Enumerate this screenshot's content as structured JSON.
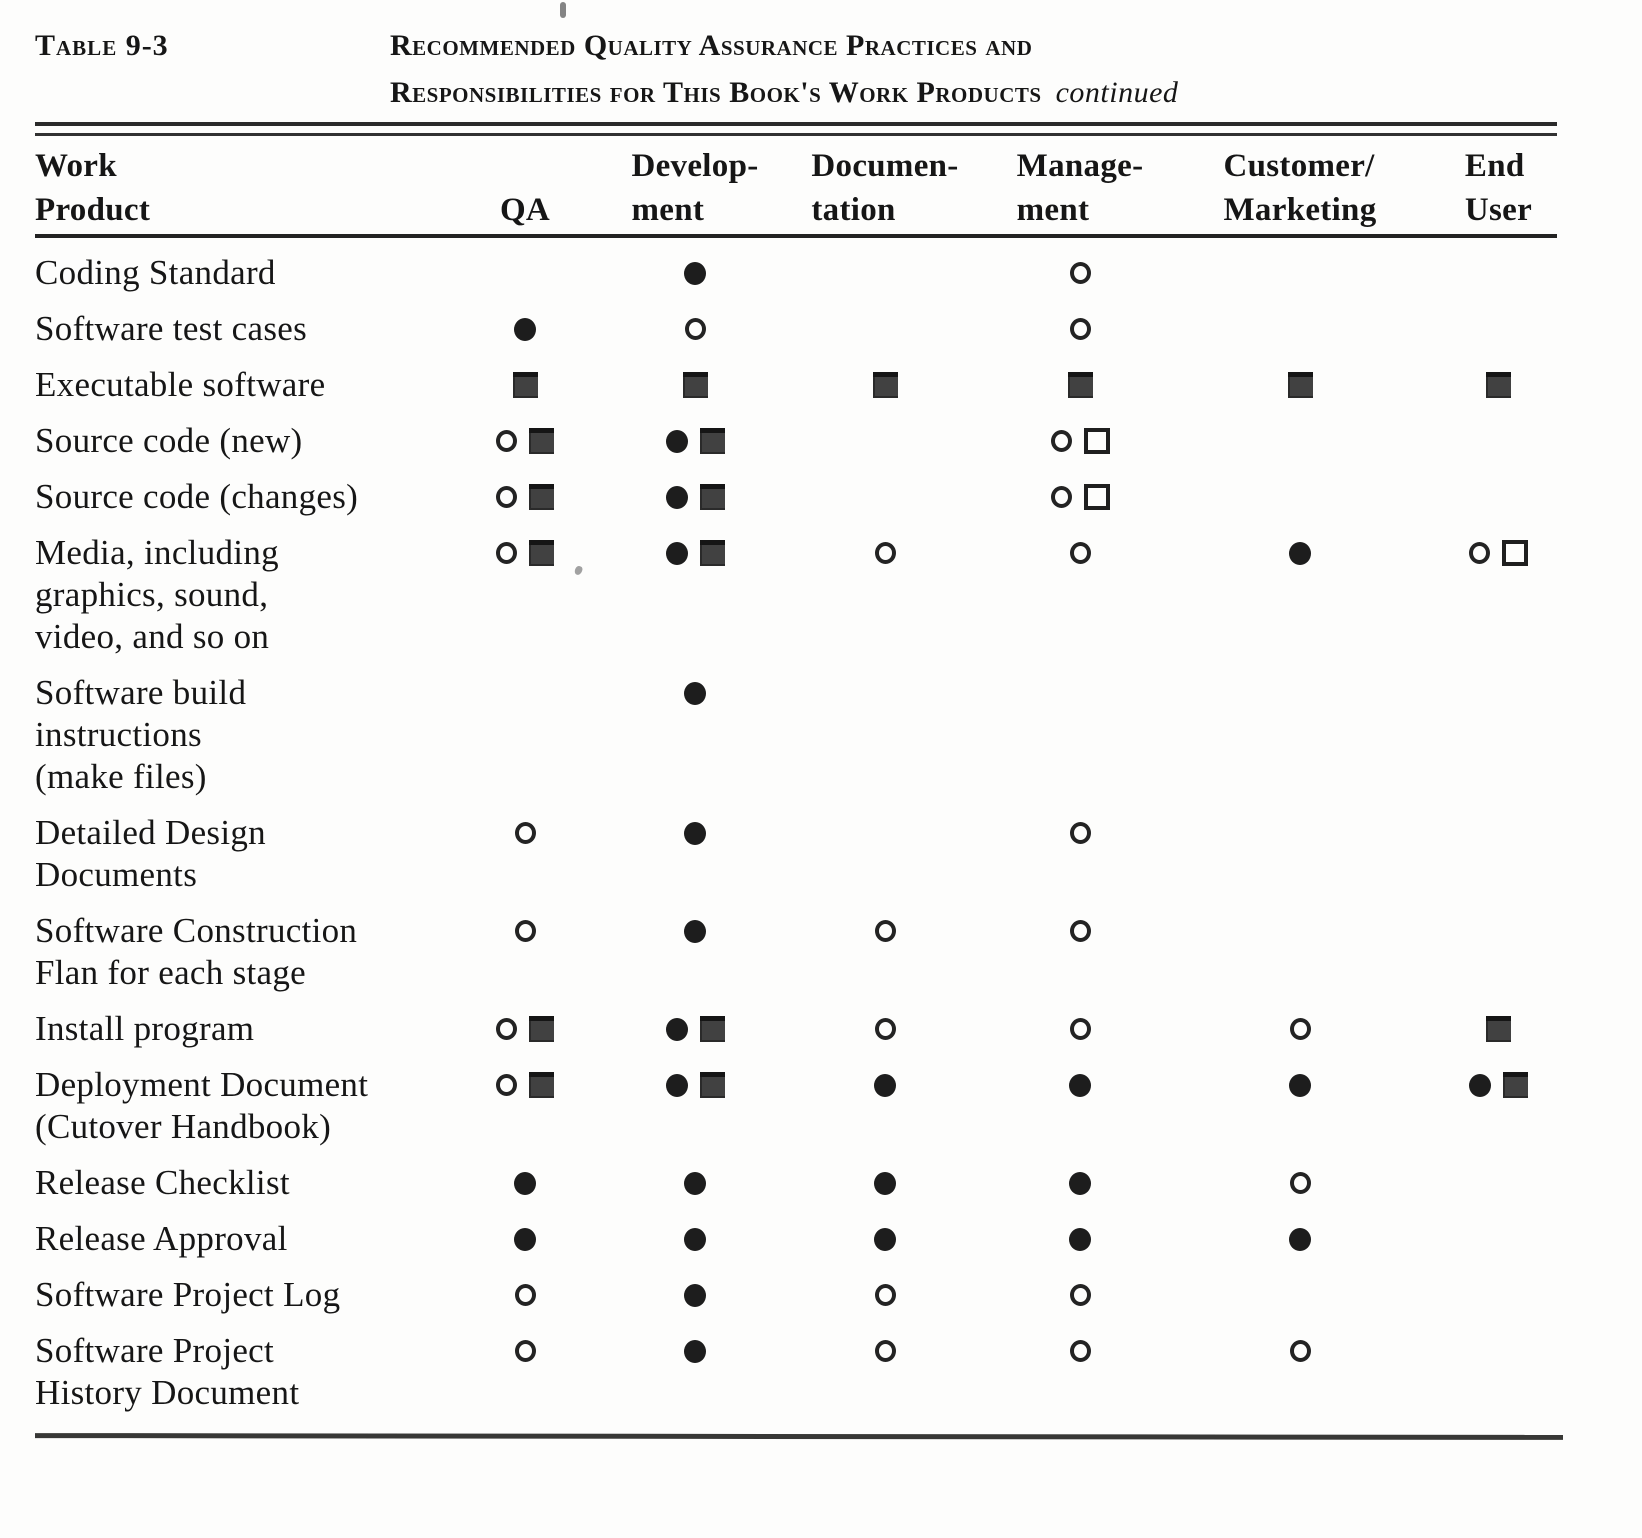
{
  "page": {
    "table_label": "Table 9-3",
    "title_line1": "Recommended Quality Assurance Practices and",
    "title_line2": "Responsibilities for This Book's Work Products",
    "title_continued": "continued"
  },
  "symbol_glyphs": {
    "filled-circle": "●",
    "open-circle": "○",
    "filled-square": "■",
    "open-square": "□"
  },
  "table": {
    "columns": [
      {
        "line1": "Work",
        "line2": "Product"
      },
      {
        "line1": "",
        "line2": "QA"
      },
      {
        "line1": "Develop-",
        "line2": "ment"
      },
      {
        "line1": "Documen-",
        "line2": "tation"
      },
      {
        "line1": "Manage-",
        "line2": "ment"
      },
      {
        "line1": "Customer/",
        "line2": "Marketing"
      },
      {
        "line1": "End",
        "line2": "User"
      }
    ],
    "rows": [
      {
        "label_lines": [
          "Coding Standard"
        ],
        "cells": [
          [],
          [
            "filled-circle"
          ],
          [],
          [
            "open-circle"
          ],
          [],
          []
        ]
      },
      {
        "label_lines": [
          "Software test cases"
        ],
        "cells": [
          [
            "filled-circle"
          ],
          [
            "open-circle"
          ],
          [],
          [
            "open-circle"
          ],
          [],
          []
        ]
      },
      {
        "label_lines": [
          "Executable software"
        ],
        "cells": [
          [
            "filled-square"
          ],
          [
            "filled-square"
          ],
          [
            "filled-square"
          ],
          [
            "filled-square"
          ],
          [
            "filled-square"
          ],
          [
            "filled-square"
          ]
        ]
      },
      {
        "label_lines": [
          "Source code (new)"
        ],
        "cells": [
          [
            "open-circle",
            "filled-square"
          ],
          [
            "filled-circle",
            "filled-square"
          ],
          [],
          [
            "open-circle",
            "open-square"
          ],
          [],
          []
        ]
      },
      {
        "label_lines": [
          "Source code (changes)"
        ],
        "cells": [
          [
            "open-circle",
            "filled-square"
          ],
          [
            "filled-circle",
            "filled-square"
          ],
          [],
          [
            "open-circle",
            "open-square"
          ],
          [],
          []
        ]
      },
      {
        "label_lines": [
          "Media, including",
          "graphics, sound,",
          "video, and so on"
        ],
        "cells": [
          [
            "open-circle",
            "filled-square"
          ],
          [
            "filled-circle",
            "filled-square"
          ],
          [
            "open-circle"
          ],
          [
            "open-circle"
          ],
          [
            "filled-circle"
          ],
          [
            "open-circle",
            "open-square"
          ]
        ]
      },
      {
        "label_lines": [
          "Software  build",
          "instructions",
          "(make files)"
        ],
        "cells": [
          [],
          [
            "filled-circle"
          ],
          [],
          [],
          [],
          []
        ]
      },
      {
        "label_lines": [
          "Detailed Design",
          "Documents"
        ],
        "cells": [
          [
            "open-circle"
          ],
          [
            "filled-circle"
          ],
          [],
          [
            "open-circle"
          ],
          [],
          []
        ]
      },
      {
        "label_lines": [
          "Software  Construction",
          "Flan for each stage"
        ],
        "cells": [
          [
            "open-circle"
          ],
          [
            "filled-circle"
          ],
          [
            "open-circle"
          ],
          [
            "open-circle"
          ],
          [],
          []
        ]
      },
      {
        "label_lines": [
          "Install program"
        ],
        "cells": [
          [
            "open-circle",
            "filled-square"
          ],
          [
            "filled-circle",
            "filled-square"
          ],
          [
            "open-circle"
          ],
          [
            "open-circle"
          ],
          [
            "open-circle"
          ],
          [
            "filled-square"
          ]
        ]
      },
      {
        "label_lines": [
          "Deployment Document",
          "(Cutover  Handbook)"
        ],
        "cells": [
          [
            "open-circle",
            "filled-square"
          ],
          [
            "filled-circle",
            "filled-square"
          ],
          [
            "filled-circle"
          ],
          [
            "filled-circle"
          ],
          [
            "filled-circle"
          ],
          [
            "filled-circle",
            "filled-square"
          ]
        ]
      },
      {
        "label_lines": [
          "Release  Checklist"
        ],
        "cells": [
          [
            "filled-circle"
          ],
          [
            "filled-circle"
          ],
          [
            "filled-circle"
          ],
          [
            "filled-circle"
          ],
          [
            "open-circle"
          ],
          []
        ]
      },
      {
        "label_lines": [
          "Release  Approval"
        ],
        "cells": [
          [
            "filled-circle"
          ],
          [
            "filled-circle"
          ],
          [
            "filled-circle"
          ],
          [
            "filled-circle"
          ],
          [
            "filled-circle"
          ],
          []
        ]
      },
      {
        "label_lines": [
          "Software Project Log"
        ],
        "cells": [
          [
            "open-circle"
          ],
          [
            "filled-circle"
          ],
          [
            "open-circle"
          ],
          [
            "open-circle"
          ],
          [],
          []
        ]
      },
      {
        "label_lines": [
          "Software Project",
          "History Document"
        ],
        "cells": [
          [
            "open-circle"
          ],
          [
            "filled-circle"
          ],
          [
            "open-circle"
          ],
          [
            "open-circle"
          ],
          [
            "open-circle"
          ],
          []
        ]
      }
    ]
  }
}
